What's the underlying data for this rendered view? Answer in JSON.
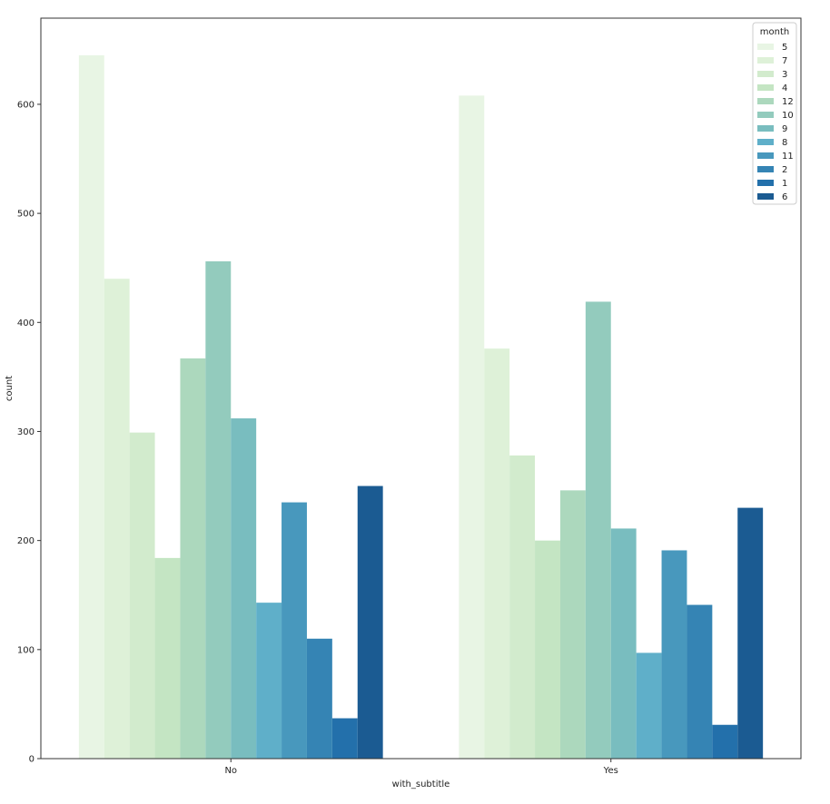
{
  "chart_data": {
    "type": "bar",
    "title": "",
    "xlabel": "with_subtitle",
    "ylabel": "count",
    "categories": [
      "No",
      "Yes"
    ],
    "ylim": [
      0,
      679
    ],
    "yticks": [
      0,
      100,
      200,
      300,
      400,
      500,
      600
    ],
    "grid": false,
    "legend": {
      "title": "month",
      "placement": "top-right"
    },
    "series": [
      {
        "name": "5",
        "color": "#e8f5e4",
        "values": [
          645,
          608
        ]
      },
      {
        "name": "7",
        "color": "#def1d8",
        "values": [
          440,
          376
        ]
      },
      {
        "name": "3",
        "color": "#d2ebcd",
        "values": [
          299,
          278
        ]
      },
      {
        "name": "4",
        "color": "#c4e5c3",
        "values": [
          184,
          200
        ]
      },
      {
        "name": "12",
        "color": "#acd8bd",
        "values": [
          367,
          246
        ]
      },
      {
        "name": "10",
        "color": "#93cbbd",
        "values": [
          456,
          419
        ]
      },
      {
        "name": "9",
        "color": "#79bdbf",
        "values": [
          312,
          211
        ]
      },
      {
        "name": "8",
        "color": "#5fafc9",
        "values": [
          143,
          97
        ]
      },
      {
        "name": "11",
        "color": "#4898bd",
        "values": [
          235,
          191
        ]
      },
      {
        "name": "2",
        "color": "#3584b4",
        "values": [
          110,
          141
        ]
      },
      {
        "name": "1",
        "color": "#2370ab",
        "values": [
          37,
          31
        ]
      },
      {
        "name": "6",
        "color": "#1b5b92",
        "values": [
          250,
          230
        ]
      }
    ]
  }
}
